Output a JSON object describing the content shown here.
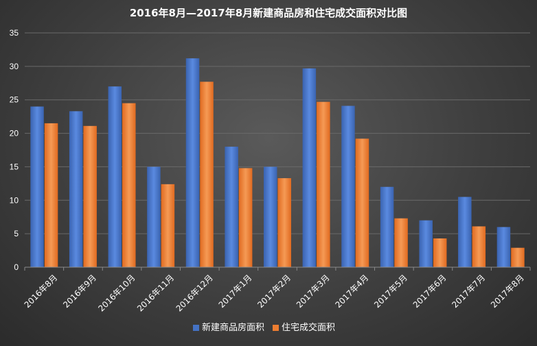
{
  "chart_data": {
    "type": "bar",
    "title": "2016年8月—2017年8月新建商品房和住宅成交面积对比图",
    "xlabel": "",
    "ylabel": "",
    "ylim": [
      0,
      35
    ],
    "yticks": [
      0,
      5,
      10,
      15,
      20,
      25,
      30,
      35
    ],
    "grid": true,
    "legend": "bottom",
    "categories": [
      "2016年8月",
      "2016年9月",
      "2016年10月",
      "2016年11月",
      "2016年12月",
      "2017年1月",
      "2017年2月",
      "2017年3月",
      "2017年4月",
      "2017年5月",
      "2017年6月",
      "2017年7月",
      "2017年8月"
    ],
    "series": [
      {
        "name": "新建商品房面积",
        "color": "#4472c4",
        "values": [
          24,
          23.3,
          27,
          15,
          31.2,
          18,
          15,
          29.7,
          24.1,
          12,
          7,
          10.5,
          6
        ]
      },
      {
        "name": "住宅成交面积",
        "color": "#ed7d31",
        "values": [
          21.5,
          21.1,
          24.5,
          12.4,
          27.7,
          14.8,
          13.3,
          24.7,
          19.2,
          7.3,
          4.3,
          6.1,
          2.9
        ]
      }
    ]
  }
}
